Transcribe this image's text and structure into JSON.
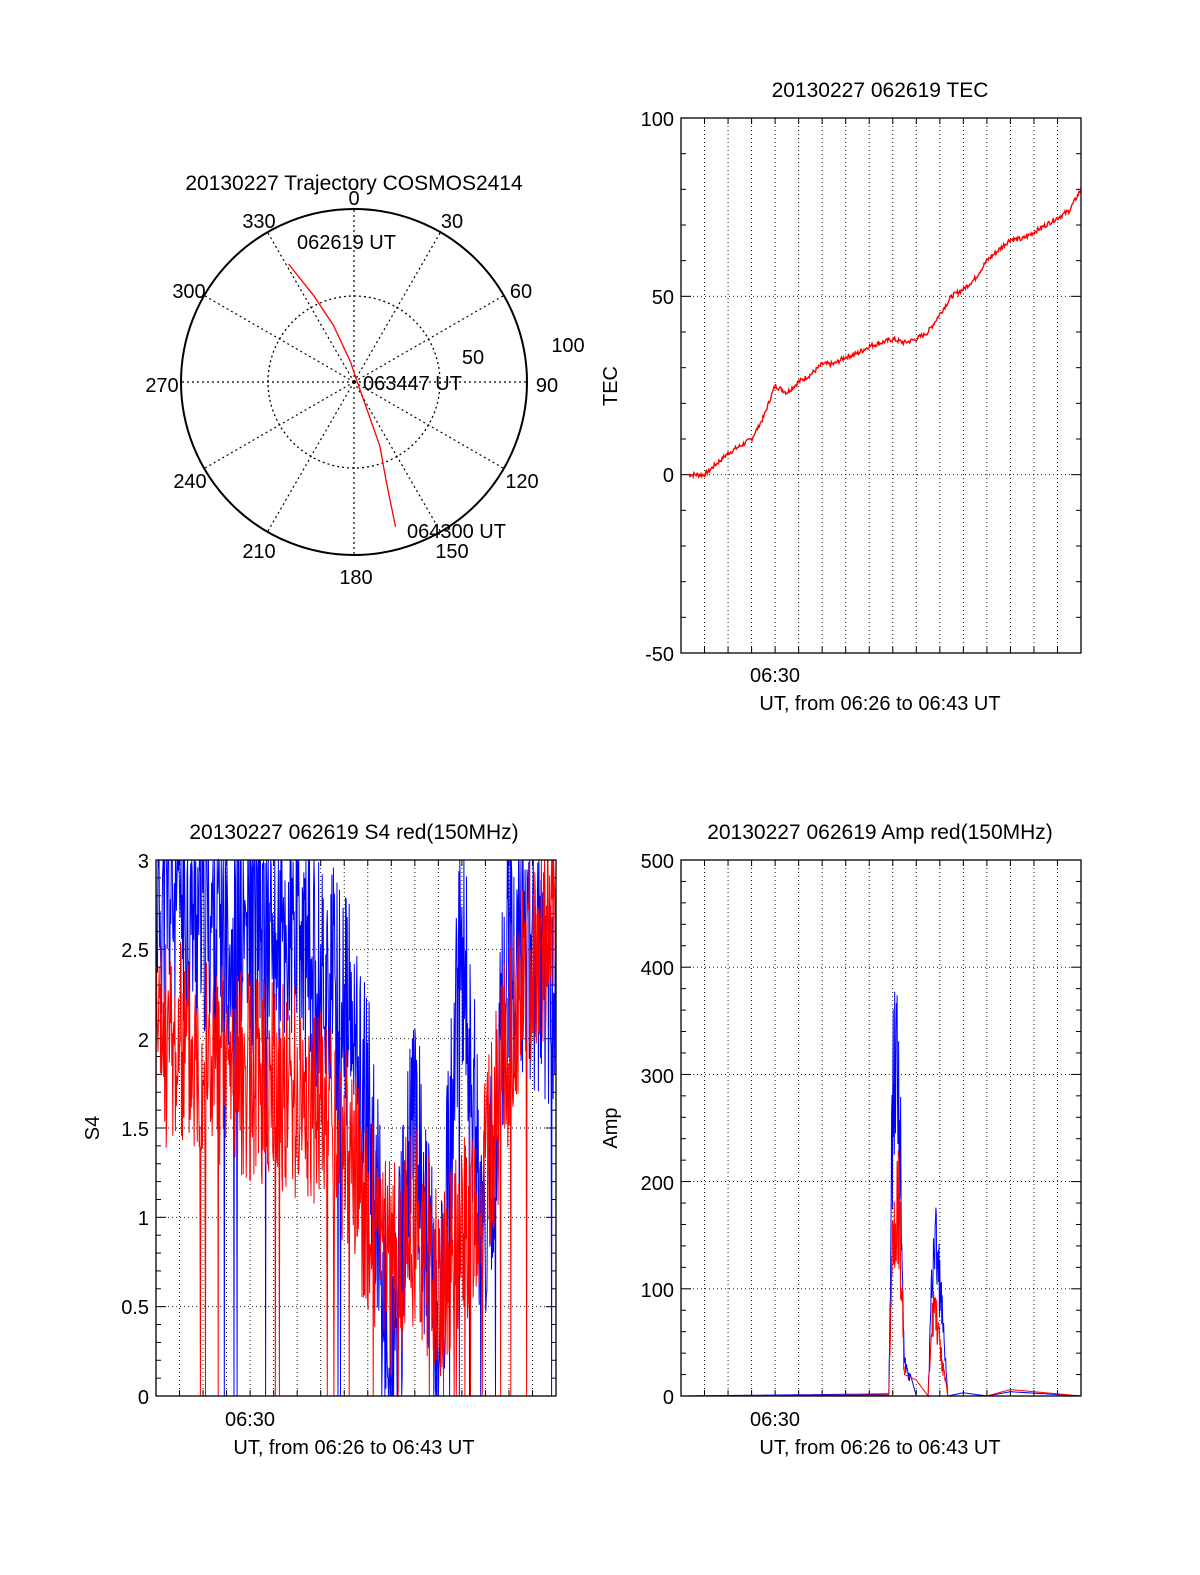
{
  "page": {
    "background": "#ffffff"
  },
  "colors": {
    "red_series": "#ff0000",
    "blue_series": "#0000ff",
    "axis": "#000000"
  },
  "polar": {
    "title": "20130227 Trajectory COSMOS2414",
    "azimuth_labels": [
      "0",
      "30",
      "60",
      "90",
      "120",
      "150",
      "180",
      "210",
      "240",
      "270",
      "300",
      "330"
    ],
    "radius_labels": [
      "50",
      "100"
    ],
    "start_label": "062619 UT",
    "mid_label": "063447 UT",
    "end_label": "064300 UT"
  },
  "chart_data": [
    {
      "type": "polar-trajectory",
      "title": "20130227 Trajectory COSMOS2414",
      "azimuth_ticks": [
        0,
        30,
        60,
        90,
        120,
        150,
        180,
        210,
        240,
        270,
        300,
        330
      ],
      "radius_ticks": [
        50,
        100
      ],
      "rlim": [
        0,
        100
      ],
      "grid": true,
      "series": [
        {
          "color": "#ff0000",
          "points": [
            [
              331,
              78
            ],
            [
              335,
              55
            ],
            [
              340,
              35
            ],
            [
              350,
              12
            ],
            [
              45,
              2
            ],
            [
              150,
              10
            ],
            [
              158,
              40
            ],
            [
              162,
              60
            ],
            [
              164,
              87
            ]
          ]
        }
      ],
      "annotations": [
        "062619 UT",
        "063447 UT",
        "064300 UT"
      ]
    },
    {
      "type": "line",
      "title": "20130227 062619 TEC",
      "xlabel": "UT, from 06:26 to 06:43 UT",
      "ylabel": "TEC",
      "xlim": [
        "06:26",
        "06:43"
      ],
      "x_tick_labels": [
        "06:30"
      ],
      "ylim": [
        -50,
        100
      ],
      "y_ticks": [
        -50,
        0,
        50,
        100
      ],
      "grid": true,
      "series": [
        {
          "color": "#ff0000",
          "x": [
            "06:26:19",
            "06:27:00",
            "06:27:30",
            "06:28:00",
            "06:28:30",
            "06:29:00",
            "06:29:30",
            "06:30:00",
            "06:30:30",
            "06:31:00",
            "06:31:30",
            "06:32:00",
            "06:32:30",
            "06:33:00",
            "06:33:30",
            "06:34:00",
            "06:34:30",
            "06:35:00",
            "06:35:30",
            "06:36:00",
            "06:36:30",
            "06:37:00",
            "06:37:30",
            "06:38:00",
            "06:38:30",
            "06:39:00",
            "06:39:30",
            "06:40:00",
            "06:40:30",
            "06:41:00",
            "06:41:30",
            "06:42:00",
            "06:42:30",
            "06:43:00"
          ],
          "values": [
            0,
            0,
            3,
            6,
            8,
            10,
            16,
            25,
            23,
            26,
            28,
            31,
            31,
            33,
            34,
            36,
            37,
            38,
            37,
            38,
            40,
            45,
            50,
            52,
            55,
            60,
            63,
            66,
            66,
            68,
            70,
            72,
            74,
            80
          ]
        }
      ]
    },
    {
      "type": "line",
      "title": "20130227 062619 S4 red(150MHz)",
      "xlabel": "UT, from 06:26 to 06:43 UT",
      "ylabel": "S4",
      "xlim": [
        "06:26",
        "06:43"
      ],
      "x_tick_labels": [
        "06:30"
      ],
      "ylim": [
        0,
        3
      ],
      "y_ticks": [
        0,
        0.5,
        1,
        1.5,
        2,
        2.5,
        3
      ],
      "grid": true,
      "series": [
        {
          "color": "#0000ff",
          "x": [
            "06:26",
            "06:28",
            "06:30",
            "06:32",
            "06:34",
            "06:35",
            "06:36",
            "06:37",
            "06:38",
            "06:39",
            "06:40",
            "06:41",
            "06:42",
            "06:43"
          ],
          "values": [
            2.8,
            2.7,
            2.6,
            2.5,
            2.2,
            1.6,
            0.1,
            1.6,
            0.2,
            2.6,
            0.7,
            2.6,
            2.4,
            2.3
          ]
        },
        {
          "color": "#ff0000",
          "x": [
            "06:26",
            "06:28",
            "06:30",
            "06:32",
            "06:34",
            "06:35",
            "06:36",
            "06:37",
            "06:38",
            "06:39",
            "06:40",
            "06:41",
            "06:42",
            "06:43"
          ],
          "values": [
            2.0,
            1.9,
            1.8,
            1.7,
            1.4,
            1.0,
            0.7,
            1.0,
            0.6,
            0.9,
            1.2,
            2.0,
            2.5,
            2.6
          ]
        }
      ]
    },
    {
      "type": "line",
      "title": "20130227 062619 Amp red(150MHz)",
      "xlabel": "UT, from 06:26 to 06:43 UT",
      "ylabel": "Amp",
      "xlim": [
        "06:26",
        "06:43"
      ],
      "x_tick_labels": [
        "06:30"
      ],
      "ylim": [
        0,
        500
      ],
      "y_ticks": [
        0,
        100,
        200,
        300,
        400,
        500
      ],
      "grid": true,
      "series": [
        {
          "color": "#0000ff",
          "x": [
            "06:26:00",
            "06:34:50",
            "06:35:00",
            "06:35:15",
            "06:35:30",
            "06:36:00",
            "06:36:30",
            "06:36:45",
            "06:37:00",
            "06:37:20",
            "06:38:00",
            "06:39:00",
            "06:40:00",
            "06:43:00"
          ],
          "values": [
            0,
            2,
            380,
            430,
            40,
            0,
            0,
            210,
            140,
            0,
            3,
            0,
            4,
            0
          ]
        },
        {
          "color": "#ff0000",
          "x": [
            "06:26:00",
            "06:34:50",
            "06:35:00",
            "06:35:15",
            "06:35:30",
            "06:36:00",
            "06:36:30",
            "06:36:45",
            "06:37:00",
            "06:37:20",
            "06:38:00",
            "06:39:00",
            "06:40:00",
            "06:43:00"
          ],
          "values": [
            0,
            1,
            200,
            250,
            20,
            15,
            0,
            120,
            60,
            0,
            0,
            0,
            6,
            0
          ]
        }
      ]
    }
  ]
}
